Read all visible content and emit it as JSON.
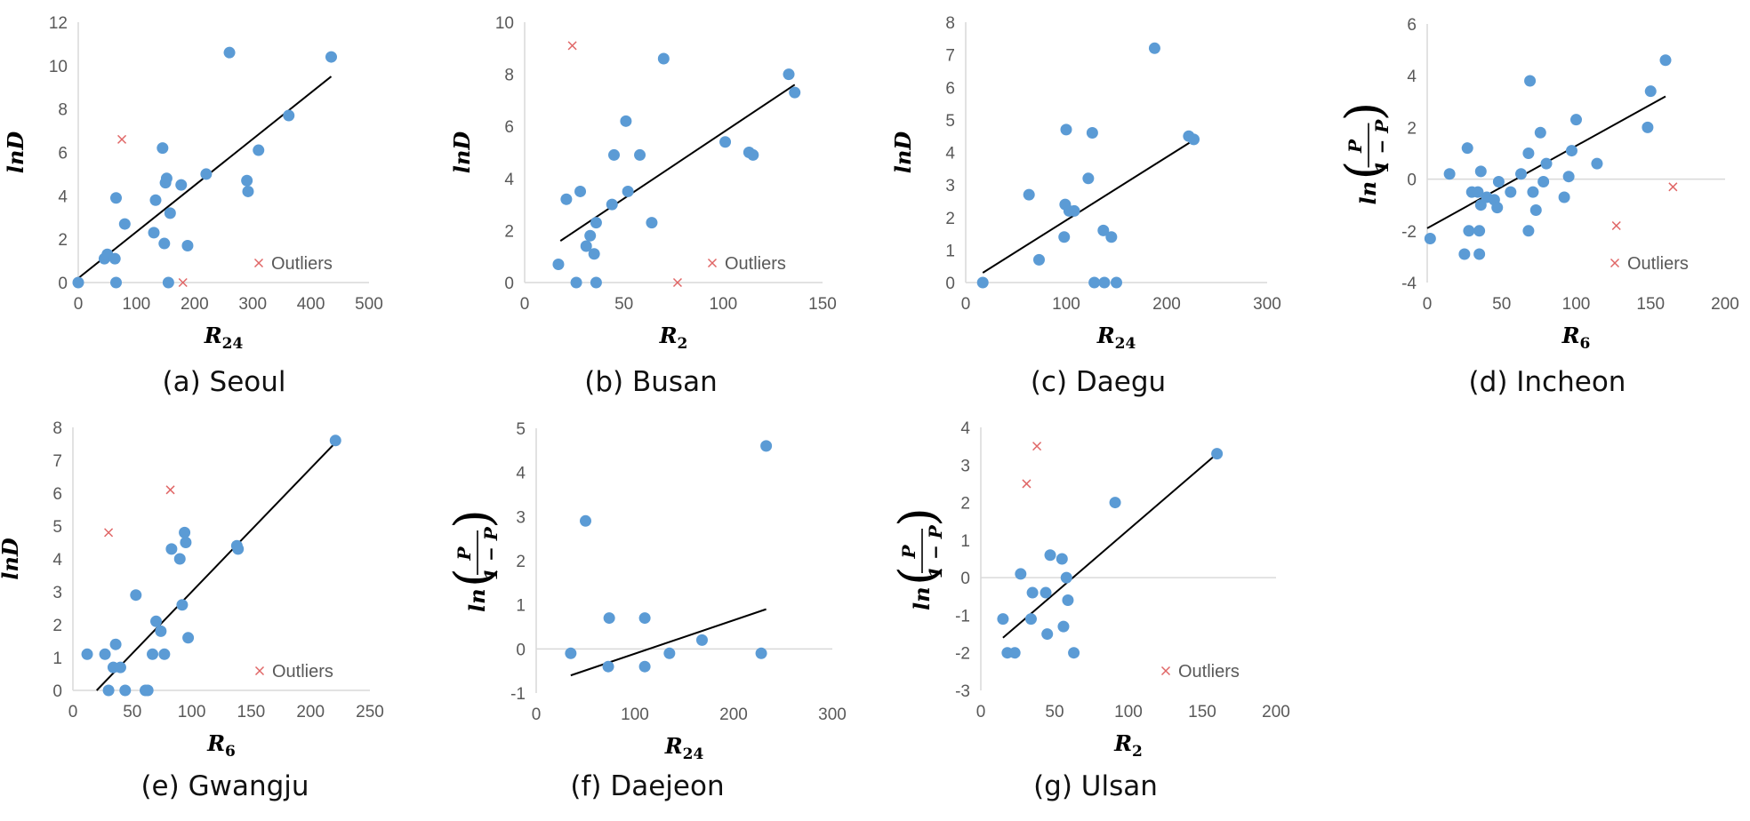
{
  "colors": {
    "point": "#5b9bd5",
    "outlier": "#e06666",
    "trend": "#000000",
    "axis": "#d9d9d9",
    "tick_text": "#595959"
  },
  "legend": {
    "outliers_label": "Outliers"
  },
  "chart_data": [
    {
      "type": "scatter",
      "caption": "(a) Seoul",
      "xlabel": {
        "main": "R",
        "sub": "24"
      },
      "ylabel": "lnD",
      "xlim": [
        0,
        500
      ],
      "ylim": [
        0,
        12
      ],
      "xticks": [
        0,
        100,
        200,
        300,
        400,
        500
      ],
      "yticks": [
        0,
        2,
        4,
        6,
        8,
        10,
        12
      ],
      "points": [
        [
          0,
          0
        ],
        [
          45,
          1.1
        ],
        [
          50,
          1.3
        ],
        [
          63,
          1.1
        ],
        [
          65,
          0
        ],
        [
          65,
          3.9
        ],
        [
          80,
          2.7
        ],
        [
          130,
          2.3
        ],
        [
          133,
          3.8
        ],
        [
          145,
          6.2
        ],
        [
          148,
          1.8
        ],
        [
          150,
          4.6
        ],
        [
          152,
          4.8
        ],
        [
          155,
          0
        ],
        [
          158,
          3.2
        ],
        [
          177,
          4.5
        ],
        [
          188,
          1.7
        ],
        [
          220,
          5
        ],
        [
          260,
          10.6
        ],
        [
          290,
          4.7
        ],
        [
          292,
          4.2
        ],
        [
          310,
          6.1
        ],
        [
          362,
          7.7
        ],
        [
          435,
          10.4
        ]
      ],
      "outliers": [
        [
          75,
          6.6
        ],
        [
          180,
          0
        ]
      ],
      "trendline": [
        [
          0,
          0.2
        ],
        [
          435,
          9.5
        ]
      ],
      "legend": "bottom-right"
    },
    {
      "type": "scatter",
      "caption": "(b) Busan",
      "xlabel": {
        "main": "R",
        "sub": "2"
      },
      "ylabel": "lnD",
      "xlim": [
        0,
        150
      ],
      "ylim": [
        0,
        10
      ],
      "xticks": [
        0,
        50,
        100,
        150
      ],
      "yticks": [
        0,
        2,
        4,
        6,
        8,
        10
      ],
      "points": [
        [
          17,
          0.7
        ],
        [
          21,
          3.2
        ],
        [
          26,
          0
        ],
        [
          28,
          3.5
        ],
        [
          31,
          1.4
        ],
        [
          33,
          1.8
        ],
        [
          35,
          1.1
        ],
        [
          36,
          0
        ],
        [
          36,
          2.3
        ],
        [
          44,
          3
        ],
        [
          45,
          4.9
        ],
        [
          51,
          6.2
        ],
        [
          52,
          3.5
        ],
        [
          58,
          4.9
        ],
        [
          64,
          2.3
        ],
        [
          70,
          8.6
        ],
        [
          101,
          5.4
        ],
        [
          113,
          5
        ],
        [
          115,
          4.9
        ],
        [
          133,
          8
        ],
        [
          136,
          7.3
        ]
      ],
      "outliers": [
        [
          24,
          9.1
        ],
        [
          77,
          0
        ]
      ],
      "trendline": [
        [
          18,
          1.6
        ],
        [
          136,
          7.6
        ]
      ],
      "legend": "bottom-right"
    },
    {
      "type": "scatter",
      "caption": "(c) Daegu",
      "xlabel": {
        "main": "R",
        "sub": "24"
      },
      "ylabel": "lnD",
      "xlim": [
        0,
        300
      ],
      "ylim": [
        0,
        8
      ],
      "xticks": [
        0,
        100,
        200,
        300
      ],
      "yticks": [
        0,
        1,
        2,
        3,
        4,
        5,
        6,
        7,
        8
      ],
      "points": [
        [
          17,
          0
        ],
        [
          63,
          2.7
        ],
        [
          73,
          0.7
        ],
        [
          98,
          1.4
        ],
        [
          99,
          2.4
        ],
        [
          100,
          4.7
        ],
        [
          103,
          2.2
        ],
        [
          108,
          2.2
        ],
        [
          122,
          3.2
        ],
        [
          126,
          4.6
        ],
        [
          128,
          0
        ],
        [
          137,
          1.6
        ],
        [
          138,
          0
        ],
        [
          145,
          1.4
        ],
        [
          150,
          0
        ],
        [
          188,
          7.2
        ],
        [
          222,
          4.5
        ],
        [
          227,
          4.4
        ]
      ],
      "outliers": [],
      "trendline": [
        [
          17,
          0.3
        ],
        [
          228,
          4.4
        ]
      ],
      "legend": null
    },
    {
      "type": "scatter",
      "caption": "(d) Incheon",
      "xlabel": {
        "main": "R",
        "sub": "6"
      },
      "ylabel": "ln(P/(1−P))",
      "xlim": [
        0,
        200
      ],
      "ylim": [
        -4,
        6
      ],
      "xticks": [
        0,
        50,
        100,
        150,
        200
      ],
      "yticks": [
        -4,
        -2,
        0,
        2,
        4,
        6
      ],
      "points": [
        [
          2,
          -2.3
        ],
        [
          15,
          0.2
        ],
        [
          25,
          -2.9
        ],
        [
          27,
          1.2
        ],
        [
          28,
          -2
        ],
        [
          30,
          -0.5
        ],
        [
          34,
          -0.5
        ],
        [
          35,
          -2.9
        ],
        [
          35,
          -2
        ],
        [
          36,
          -1
        ],
        [
          36,
          0.3
        ],
        [
          40,
          -0.7
        ],
        [
          45,
          -0.8
        ],
        [
          47,
          -1.1
        ],
        [
          48,
          -0.1
        ],
        [
          56,
          -0.5
        ],
        [
          63,
          0.2
        ],
        [
          68,
          1
        ],
        [
          68,
          -2
        ],
        [
          69,
          3.8
        ],
        [
          71,
          -0.5
        ],
        [
          73,
          -1.2
        ],
        [
          76,
          1.8
        ],
        [
          78,
          -0.1
        ],
        [
          80,
          0.6
        ],
        [
          92,
          -0.7
        ],
        [
          95,
          0.1
        ],
        [
          97,
          1.1
        ],
        [
          100,
          2.3
        ],
        [
          114,
          0.6
        ],
        [
          148,
          2
        ],
        [
          150,
          3.4
        ],
        [
          160,
          4.6
        ]
      ],
      "outliers": [
        [
          127,
          -1.8
        ],
        [
          165,
          -0.3
        ]
      ],
      "trendline": [
        [
          0,
          -1.9
        ],
        [
          160,
          3.2
        ]
      ],
      "legend": "bottom-right"
    },
    {
      "type": "scatter",
      "caption": "(e) Gwangju",
      "xlabel": {
        "main": "R",
        "sub": "6"
      },
      "ylabel": "lnD",
      "xlim": [
        0,
        250
      ],
      "ylim": [
        0,
        8
      ],
      "xticks": [
        0,
        50,
        100,
        150,
        200,
        250
      ],
      "yticks": [
        0,
        1,
        2,
        3,
        4,
        5,
        6,
        7,
        8
      ],
      "points": [
        [
          12,
          1.1
        ],
        [
          27,
          1.1
        ],
        [
          30,
          0
        ],
        [
          34,
          0.7
        ],
        [
          36,
          1.4
        ],
        [
          40,
          0.7
        ],
        [
          44,
          0
        ],
        [
          53,
          2.9
        ],
        [
          61,
          0
        ],
        [
          63,
          0
        ],
        [
          67,
          1.1
        ],
        [
          70,
          2.1
        ],
        [
          74,
          1.8
        ],
        [
          77,
          1.1
        ],
        [
          83,
          4.3
        ],
        [
          90,
          4
        ],
        [
          92,
          2.6
        ],
        [
          94,
          4.8
        ],
        [
          95,
          4.5
        ],
        [
          97,
          1.6
        ],
        [
          138,
          4.4
        ],
        [
          139,
          4.3
        ],
        [
          221,
          7.6
        ]
      ],
      "outliers": [
        [
          30,
          4.8
        ],
        [
          82,
          6.1
        ]
      ],
      "trendline": [
        [
          20,
          0
        ],
        [
          220,
          7.5
        ]
      ],
      "legend": "bottom-right"
    },
    {
      "type": "scatter",
      "caption": "(f) Daejeon",
      "xlabel": {
        "main": "R",
        "sub": "24"
      },
      "ylabel": "ln(P/(1−P))",
      "xlim": [
        0,
        300
      ],
      "ylim": [
        -1,
        5
      ],
      "xticks": [
        0,
        100,
        200,
        300
      ],
      "yticks": [
        -1,
        0,
        1,
        2,
        3,
        4,
        5
      ],
      "points": [
        [
          35,
          -0.1
        ],
        [
          50,
          2.9
        ],
        [
          73,
          -0.4
        ],
        [
          74,
          0.7
        ],
        [
          110,
          0.7
        ],
        [
          110,
          -0.4
        ],
        [
          135,
          -0.1
        ],
        [
          168,
          0.2
        ],
        [
          228,
          -0.1
        ],
        [
          233,
          4.6
        ]
      ],
      "outliers": [],
      "trendline": [
        [
          35,
          -0.6
        ],
        [
          233,
          0.9
        ]
      ],
      "legend": null
    },
    {
      "type": "scatter",
      "caption": "(g) Ulsan",
      "xlabel": {
        "main": "R",
        "sub": "2"
      },
      "ylabel": "ln(P/(1−P))",
      "xlim": [
        0,
        200
      ],
      "ylim": [
        -3,
        4
      ],
      "xticks": [
        0,
        50,
        100,
        150,
        200
      ],
      "yticks": [
        -3,
        -2,
        -1,
        0,
        1,
        2,
        3,
        4
      ],
      "points": [
        [
          15,
          -1.1
        ],
        [
          18,
          -2
        ],
        [
          23,
          -2
        ],
        [
          27,
          0.1
        ],
        [
          34,
          -1.1
        ],
        [
          35,
          -0.4
        ],
        [
          44,
          -0.4
        ],
        [
          45,
          -1.5
        ],
        [
          47,
          0.6
        ],
        [
          55,
          0.5
        ],
        [
          56,
          -1.3
        ],
        [
          58,
          0
        ],
        [
          59,
          -0.6
        ],
        [
          63,
          -2
        ],
        [
          91,
          2
        ],
        [
          160,
          3.3
        ]
      ],
      "outliers": [
        [
          31,
          2.5
        ],
        [
          38,
          3.5
        ]
      ],
      "trendline": [
        [
          15,
          -1.6
        ],
        [
          160,
          3.3
        ]
      ],
      "legend": "bottom-right"
    }
  ]
}
